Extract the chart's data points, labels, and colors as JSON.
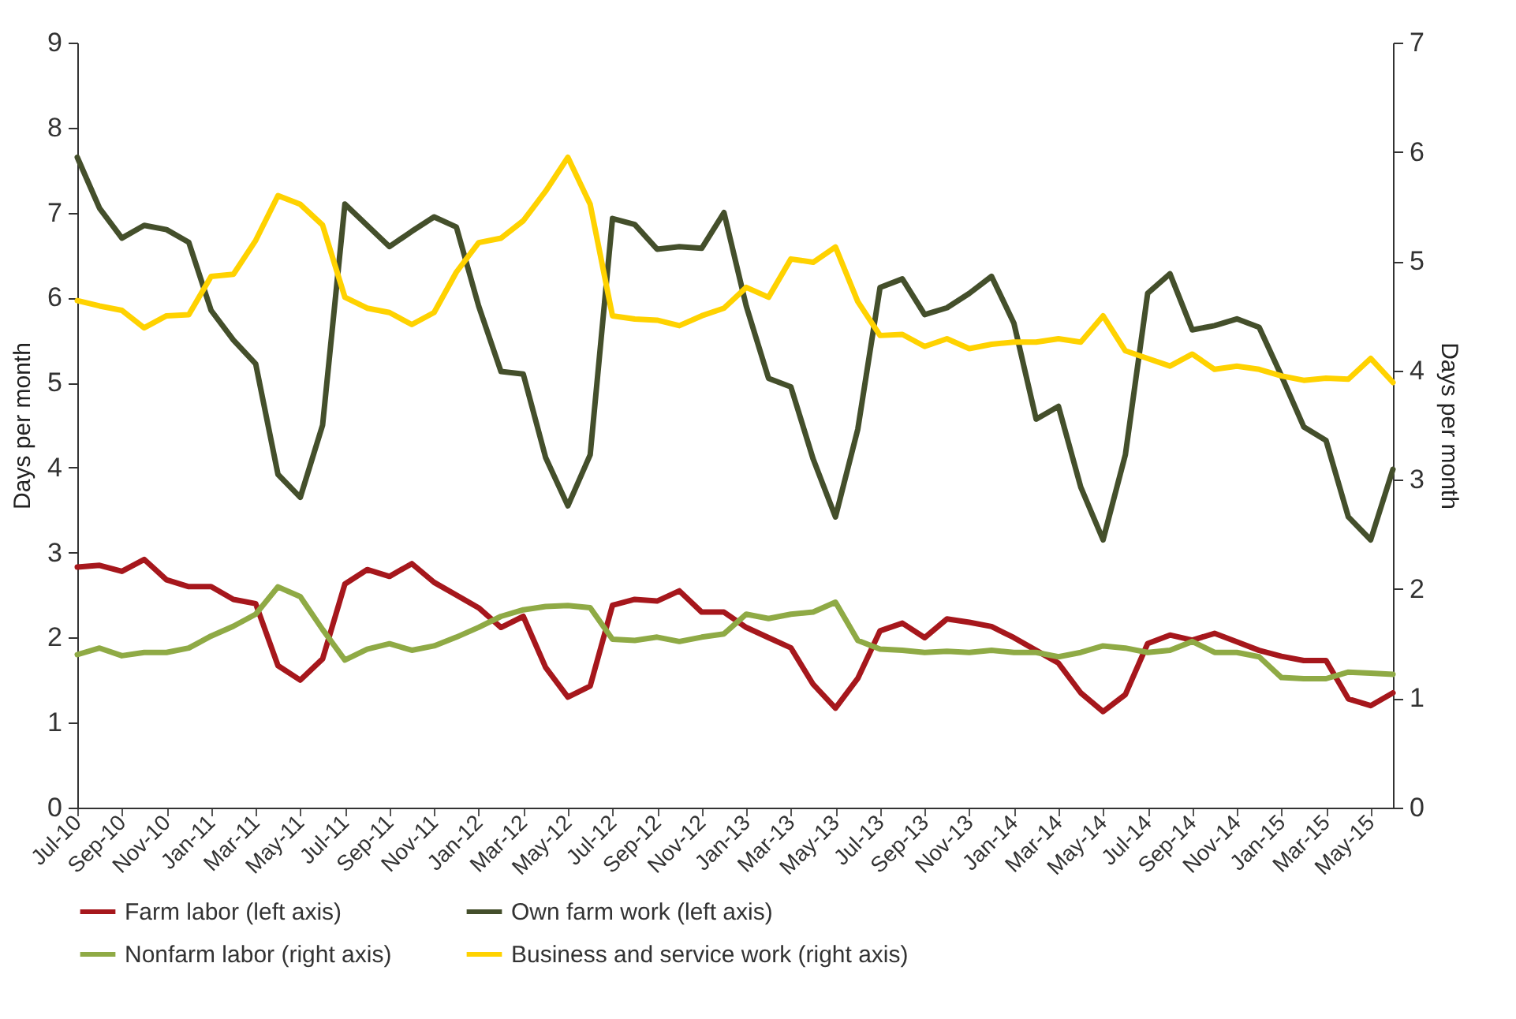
{
  "chart_data": {
    "type": "line",
    "ylabel": "Days per month",
    "y2label": "Days per month",
    "categories": [
      "Jul-10",
      null,
      "Sep-10",
      null,
      "Nov-10",
      null,
      "Jan-11",
      null,
      "Mar-11",
      null,
      "May-11",
      null,
      "Jul-11",
      null,
      "Sep-11",
      null,
      "Nov-11",
      null,
      "Jan-12",
      null,
      "Mar-12",
      null,
      "May-12",
      null,
      "Jul-12",
      null,
      "Sep-12",
      null,
      "Nov-12",
      null,
      "Jan-13",
      null,
      "Mar-13",
      null,
      "May-13",
      null,
      "Jul-13",
      null,
      "Sep-13",
      null,
      "Nov-13",
      null,
      "Jan-14",
      null,
      "Mar-14",
      null,
      "May-14",
      null,
      "Jul-14",
      null,
      "Sep-14",
      null,
      "Nov-14",
      null,
      "Jan-15",
      null,
      "Mar-15",
      null,
      "May-15",
      null
    ],
    "ylim": [
      0,
      9
    ],
    "yticks": [
      0,
      1,
      2,
      3,
      4,
      5,
      6,
      7,
      8,
      9
    ],
    "y2lim": [
      0,
      7
    ],
    "y2ticks": [
      0,
      1,
      2,
      3,
      4,
      5,
      6,
      7
    ],
    "grid": false,
    "legend": "bottom",
    "marker": "none",
    "line_style": "solid",
    "series": [
      {
        "name": "Farm labor (left axis)",
        "color": "#a6171c",
        "values": [
          2.83,
          2.85,
          2.78,
          2.92,
          2.68,
          2.6,
          2.6,
          2.45,
          2.4,
          1.67,
          1.5,
          1.75,
          2.63,
          2.8,
          2.72,
          2.87,
          2.65,
          2.5,
          2.35,
          2.12,
          2.25,
          1.65,
          1.3,
          1.43,
          2.38,
          2.45,
          2.43,
          2.55,
          2.3,
          2.3,
          2.12,
          2.0,
          1.88,
          1.45,
          1.17,
          1.52,
          2.08,
          2.17,
          2.0,
          2.22,
          2.18,
          2.13,
          2.0,
          1.85,
          1.7,
          1.35,
          1.13,
          1.33,
          1.93,
          2.03,
          1.97,
          2.05,
          1.95,
          1.85,
          1.78,
          1.73,
          1.73,
          1.28,
          1.2,
          1.35
        ]
      },
      {
        "name": "Own farm work (left axis)",
        "color": "#444f2b",
        "values": [
          7.65,
          7.05,
          6.7,
          6.85,
          6.8,
          6.65,
          5.85,
          5.5,
          5.22,
          3.92,
          3.65,
          4.5,
          7.1,
          6.85,
          6.6,
          6.78,
          6.95,
          6.83,
          5.9,
          5.13,
          5.1,
          4.12,
          3.55,
          4.15,
          6.93,
          6.86,
          6.57,
          6.6,
          6.58,
          7.0,
          5.9,
          5.05,
          4.95,
          4.1,
          3.42,
          4.45,
          6.12,
          6.22,
          5.8,
          5.88,
          6.05,
          6.25,
          5.7,
          4.57,
          4.72,
          3.77,
          3.15,
          4.15,
          6.05,
          6.28,
          5.62,
          5.67,
          5.75,
          5.65,
          5.08,
          4.48,
          4.32,
          3.42,
          3.15,
          3.98
        ]
      },
      {
        "name": "Nonfarm labor (right axis)",
        "color": "#8faa45",
        "axis": "y2",
        "values": [
          1.4,
          1.46,
          1.39,
          1.42,
          1.42,
          1.46,
          1.57,
          1.66,
          1.77,
          2.02,
          1.93,
          1.63,
          1.35,
          1.45,
          1.5,
          1.44,
          1.48,
          1.56,
          1.65,
          1.75,
          1.81,
          1.84,
          1.85,
          1.83,
          1.54,
          1.53,
          1.56,
          1.52,
          1.56,
          1.59,
          1.77,
          1.73,
          1.77,
          1.79,
          1.88,
          1.53,
          1.45,
          1.44,
          1.42,
          1.43,
          1.42,
          1.44,
          1.42,
          1.42,
          1.38,
          1.42,
          1.48,
          1.46,
          1.42,
          1.44,
          1.52,
          1.42,
          1.42,
          1.38,
          1.19,
          1.18,
          1.18,
          1.24,
          1.23,
          1.22
        ]
      },
      {
        "name": "Business and service work (right axis)",
        "color": "#ffd200",
        "axis": "y2",
        "values": [
          4.64,
          4.59,
          4.55,
          4.39,
          4.5,
          4.51,
          4.86,
          4.88,
          5.19,
          5.6,
          5.52,
          5.33,
          4.67,
          4.57,
          4.53,
          4.42,
          4.53,
          4.9,
          5.17,
          5.21,
          5.37,
          5.64,
          5.95,
          5.52,
          4.5,
          4.47,
          4.46,
          4.41,
          4.5,
          4.57,
          4.76,
          4.67,
          5.02,
          4.99,
          5.13,
          4.63,
          4.32,
          4.33,
          4.22,
          4.29,
          4.2,
          4.24,
          4.26,
          4.26,
          4.29,
          4.26,
          4.5,
          4.18,
          4.11,
          4.04,
          4.15,
          4.01,
          4.04,
          4.01,
          3.95,
          3.91,
          3.93,
          3.92,
          4.11,
          3.89
        ]
      }
    ]
  }
}
